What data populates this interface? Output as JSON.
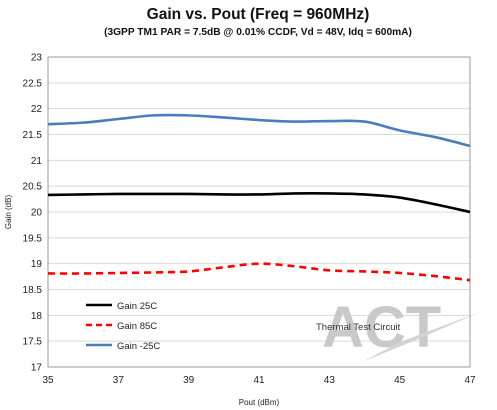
{
  "chart_data": {
    "type": "line",
    "title": "Gain vs. Pout (Freq = 960MHz)",
    "subtitle": "(3GPP TM1 PAR = 7.5dB @ 0.01% CCDF, Vd = 48V, Idq = 600mA)",
    "xlabel": "Pout (dBm)",
    "ylabel": "Gain (dB)",
    "xlim": [
      35,
      47
    ],
    "ylim": [
      17,
      23
    ],
    "xticks": [
      "35",
      "37",
      "39",
      "41",
      "43",
      "45",
      "47"
    ],
    "yticks": [
      "17",
      "17.5",
      "18",
      "18.5",
      "19",
      "19.5",
      "20",
      "20.5",
      "21",
      "21.5",
      "22",
      "22.5",
      "23"
    ],
    "grid": "horizontal",
    "legend_position": "bottom-left",
    "annotation": "Thermal Test Circuit",
    "watermark": "ACT",
    "series": [
      {
        "name": "Gain 25C",
        "color": "#000000",
        "style": "solid",
        "x": [
          35,
          36,
          37,
          38,
          39,
          40,
          41,
          42,
          43,
          44,
          45,
          46,
          47
        ],
        "y": [
          20.33,
          20.34,
          20.35,
          20.35,
          20.35,
          20.34,
          20.34,
          20.36,
          20.36,
          20.34,
          20.28,
          20.15,
          20.0
        ]
      },
      {
        "name": "Gain 85C",
        "color": "#ff0000",
        "style": "dashed",
        "x": [
          35,
          36,
          37,
          38,
          39,
          40,
          41,
          42,
          43,
          44,
          45,
          46,
          47
        ],
        "y": [
          18.81,
          18.81,
          18.82,
          18.83,
          18.85,
          18.93,
          19.0,
          18.95,
          18.87,
          18.85,
          18.82,
          18.76,
          18.68
        ]
      },
      {
        "name": "Gain -25C",
        "color": "#4a7ebb",
        "style": "solid",
        "x": [
          35,
          36,
          37,
          38,
          39,
          40,
          41,
          42,
          43,
          44,
          45,
          46,
          47
        ],
        "y": [
          21.7,
          21.73,
          21.8,
          21.87,
          21.87,
          21.83,
          21.78,
          21.75,
          21.76,
          21.75,
          21.58,
          21.45,
          21.28
        ]
      }
    ]
  }
}
